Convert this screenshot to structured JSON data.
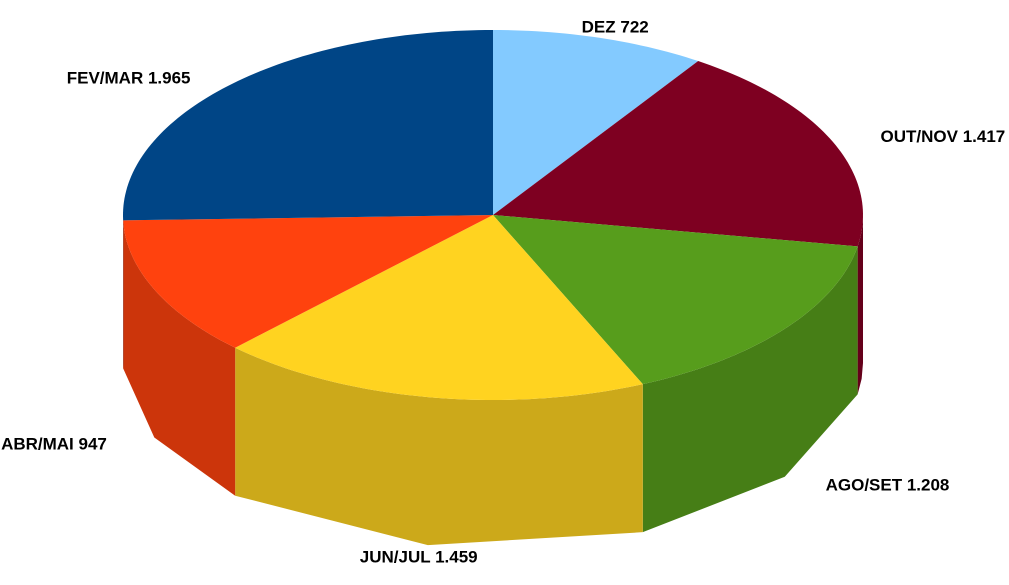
{
  "chart_data": {
    "type": "pie",
    "categories": [
      "DEZ",
      "OUT/NOV",
      "AGO/SET",
      "JUN/JUL",
      "ABR/MAI",
      "FEV/MAR"
    ],
    "values": [
      722,
      1417,
      1208,
      1459,
      947,
      1965
    ],
    "value_labels": [
      "722",
      "1.417",
      "1.208",
      "1.459",
      "947",
      "1.965"
    ],
    "colors": [
      "#83caff",
      "#7e0021",
      "#579d1c",
      "#ffd320",
      "#ff420e",
      "#004586"
    ]
  }
}
